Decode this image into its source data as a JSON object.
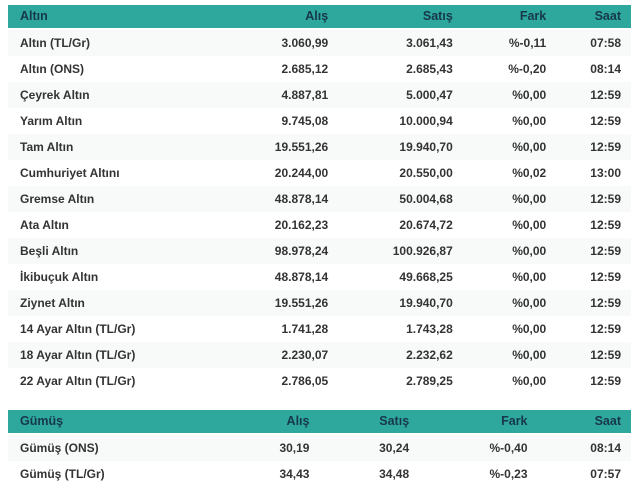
{
  "accent_color": "#2EA79D",
  "header_text_color": "#17384A",
  "gold_table": {
    "headers": [
      "Altın",
      "Alış",
      "Satış",
      "Fark",
      "Saat"
    ],
    "rows": [
      [
        "Altın (TL/Gr)",
        "3.060,99",
        "3.061,43",
        "%-0,11",
        "07:58"
      ],
      [
        "Altın (ONS)",
        "2.685,12",
        "2.685,43",
        "%-0,20",
        "08:14"
      ],
      [
        "Çeyrek Altın",
        "4.887,81",
        "5.000,47",
        "%0,00",
        "12:59"
      ],
      [
        "Yarım Altın",
        "9.745,08",
        "10.000,94",
        "%0,00",
        "12:59"
      ],
      [
        "Tam Altın",
        "19.551,26",
        "19.940,70",
        "%0,00",
        "12:59"
      ],
      [
        "Cumhuriyet Altını",
        "20.244,00",
        "20.550,00",
        "%0,02",
        "13:00"
      ],
      [
        "Gremse Altın",
        "48.878,14",
        "50.004,68",
        "%0,00",
        "12:59"
      ],
      [
        "Ata Altın",
        "20.162,23",
        "20.674,72",
        "%0,00",
        "12:59"
      ],
      [
        "Beşli Altın",
        "98.978,24",
        "100.926,87",
        "%0,00",
        "12:59"
      ],
      [
        "İkibuçuk Altın",
        "48.878,14",
        "49.668,25",
        "%0,00",
        "12:59"
      ],
      [
        "Ziynet Altın",
        "19.551,26",
        "19.940,70",
        "%0,00",
        "12:59"
      ],
      [
        "14 Ayar Altın (TL/Gr)",
        "1.741,28",
        "1.743,28",
        "%0,00",
        "12:59"
      ],
      [
        "18 Ayar Altın (TL/Gr)",
        "2.230,07",
        "2.232,62",
        "%0,00",
        "12:59"
      ],
      [
        "22 Ayar Altın (TL/Gr)",
        "2.786,05",
        "2.789,25",
        "%0,00",
        "12:59"
      ]
    ]
  },
  "silver_table": {
    "headers": [
      "Gümüş",
      "Alış",
      "Satış",
      "Fark",
      "Saat"
    ],
    "rows": [
      [
        "Gümüş (ONS)",
        "30,19",
        "30,24",
        "%-0,40",
        "08:14"
      ],
      [
        "Gümüş (TL/Gr)",
        "34,43",
        "34,48",
        "%-0,23",
        "07:57"
      ]
    ]
  }
}
